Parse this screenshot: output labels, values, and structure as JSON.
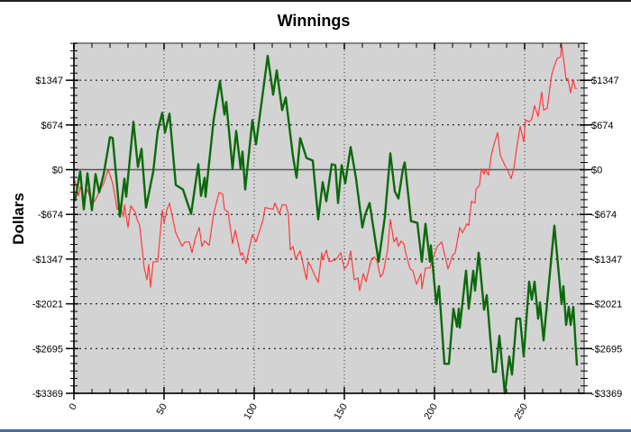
{
  "chart_data": {
    "type": "line",
    "title": "Winnings",
    "xlabel": "",
    "ylabel": "Dollars",
    "xlim": [
      0,
      283
    ],
    "ylim": [
      -3369,
      1905
    ],
    "x_ticks": [
      0,
      50,
      100,
      150,
      200,
      250
    ],
    "x_tick_labels": [
      "0",
      "50",
      "100",
      "150",
      "200",
      "250"
    ],
    "y_ticks": [
      1347,
      674,
      0,
      -674,
      -1347,
      -2021,
      -2695,
      -3369
    ],
    "y_tick_labels": [
      "$1347",
      "$674",
      "$0",
      "-$674",
      "-$1347",
      "-$2021",
      "-$2695",
      "-$3369"
    ],
    "grid": true,
    "legend": "none",
    "colors": {
      "plot_bg": "#d3d3d3",
      "green": "#0a6a0a",
      "red": "#ff3b3b",
      "zero_line": "#555555"
    },
    "series": [
      {
        "name": "green",
        "points": [
          [
            0.5,
            -476
          ],
          [
            3.5,
            -27
          ],
          [
            5.5,
            -598
          ],
          [
            7.5,
            -54
          ],
          [
            10,
            -612
          ],
          [
            12,
            -68
          ],
          [
            14,
            -340
          ],
          [
            16.5,
            -68
          ],
          [
            20,
            490
          ],
          [
            21.5,
            476
          ],
          [
            25.5,
            -707
          ],
          [
            28,
            -136
          ],
          [
            29,
            -408
          ],
          [
            33,
            721
          ],
          [
            35.5,
            41
          ],
          [
            37.5,
            313
          ],
          [
            40,
            -571
          ],
          [
            44,
            -27
          ],
          [
            46.5,
            585
          ],
          [
            49,
            857
          ],
          [
            50.5,
            558
          ],
          [
            53,
            843
          ],
          [
            56.5,
            -231
          ],
          [
            60.5,
            -299
          ],
          [
            65,
            -666
          ],
          [
            69,
            82
          ],
          [
            70.5,
            -394
          ],
          [
            72.5,
            -122
          ],
          [
            73,
            -408
          ],
          [
            77.5,
            748
          ],
          [
            81,
            1333
          ],
          [
            83.5,
            830
          ],
          [
            84.5,
            1020
          ],
          [
            88,
            14
          ],
          [
            90,
            585
          ],
          [
            92.5,
            14
          ],
          [
            93.5,
            272
          ],
          [
            95,
            -299
          ],
          [
            99,
            748
          ],
          [
            101,
            381
          ],
          [
            107.5,
            1714
          ],
          [
            110.5,
            1129
          ],
          [
            112.5,
            1496
          ],
          [
            115.5,
            898
          ],
          [
            117.5,
            1088
          ],
          [
            121.5,
            204
          ],
          [
            123.5,
            -122
          ],
          [
            125.5,
            476
          ],
          [
            129,
            177
          ],
          [
            132.5,
            136
          ],
          [
            135.5,
            -748
          ],
          [
            138,
            -190
          ],
          [
            140,
            -476
          ],
          [
            143,
            82
          ],
          [
            145,
            68
          ],
          [
            146.5,
            -503
          ],
          [
            148.5,
            68
          ],
          [
            150.5,
            -204
          ],
          [
            153.5,
            340
          ],
          [
            156.5,
            -136
          ],
          [
            160,
            -870
          ],
          [
            161.5,
            -680
          ],
          [
            164,
            -503
          ],
          [
            169,
            -1387
          ],
          [
            172.5,
            -707
          ],
          [
            175.5,
            245
          ],
          [
            178,
            -326
          ],
          [
            180,
            -435
          ],
          [
            182.5,
            14
          ],
          [
            183.5,
            109
          ],
          [
            187,
            -775
          ],
          [
            190.5,
            -802
          ],
          [
            193,
            -1387
          ],
          [
            195,
            -816
          ],
          [
            197.5,
            -1387
          ],
          [
            198,
            -1142
          ],
          [
            201,
            -2026
          ],
          [
            202.5,
            -1754
          ],
          [
            205.5,
            -2924
          ],
          [
            208,
            -2924
          ],
          [
            210.5,
            -2094
          ],
          [
            212.5,
            -2366
          ],
          [
            213.5,
            -2094
          ],
          [
            214,
            -2380
          ],
          [
            217.5,
            -1523
          ],
          [
            219,
            -2094
          ],
          [
            221.5,
            -1523
          ],
          [
            222.5,
            -1822
          ],
          [
            224.5,
            -1251
          ],
          [
            227.5,
            -2108
          ],
          [
            229,
            -1890
          ],
          [
            232.5,
            -3046
          ],
          [
            234,
            -3046
          ],
          [
            236,
            -2502
          ],
          [
            239,
            -3369
          ],
          [
            241.5,
            -2815
          ],
          [
            243,
            -3087
          ],
          [
            245.5,
            -2244
          ],
          [
            247.5,
            -2244
          ],
          [
            249.5,
            -2815
          ],
          [
            252.5,
            -1686
          ],
          [
            254,
            -1958
          ],
          [
            255.5,
            -1686
          ],
          [
            257.5,
            -2244
          ],
          [
            258.5,
            -1999
          ],
          [
            260.5,
            -2570
          ],
          [
            266.5,
            -843
          ],
          [
            270.5,
            -2026
          ],
          [
            271.5,
            -1754
          ],
          [
            273,
            -2339
          ],
          [
            274.5,
            -2067
          ],
          [
            275.5,
            -2339
          ],
          [
            277,
            -2067
          ],
          [
            279,
            -2951
          ]
        ]
      },
      {
        "name": "red",
        "points": [
          [
            0.5,
            -163
          ],
          [
            2.5,
            -394
          ],
          [
            3.5,
            -258
          ],
          [
            5.5,
            -435
          ],
          [
            7.5,
            -299
          ],
          [
            10,
            -503
          ],
          [
            11.5,
            -476
          ],
          [
            14,
            -340
          ],
          [
            16.5,
            -204
          ],
          [
            19,
            0
          ],
          [
            21.5,
            -204
          ],
          [
            24,
            -598
          ],
          [
            25.5,
            -530
          ],
          [
            27.5,
            -707
          ],
          [
            28,
            -530
          ],
          [
            30,
            -870
          ],
          [
            31.5,
            -544
          ],
          [
            34,
            -639
          ],
          [
            35,
            -748
          ],
          [
            36.5,
            -843
          ],
          [
            39,
            -1482
          ],
          [
            40.5,
            -1659
          ],
          [
            41.5,
            -1428
          ],
          [
            42.5,
            -1768
          ],
          [
            44,
            -1387
          ],
          [
            46.5,
            -1387
          ],
          [
            49,
            -612
          ],
          [
            50,
            -802
          ],
          [
            51.5,
            -612
          ],
          [
            53,
            -503
          ],
          [
            56.5,
            -952
          ],
          [
            60,
            -1156
          ],
          [
            61.5,
            -1088
          ],
          [
            64,
            -1088
          ],
          [
            65.5,
            -1251
          ],
          [
            67.5,
            -1020
          ],
          [
            69.5,
            -870
          ],
          [
            71,
            -1156
          ],
          [
            72.5,
            -1074
          ],
          [
            75,
            -1142
          ],
          [
            77.5,
            -666
          ],
          [
            80.5,
            -340
          ],
          [
            82.5,
            -367
          ],
          [
            83.5,
            -598
          ],
          [
            85.5,
            -639
          ],
          [
            88,
            -1115
          ],
          [
            89.5,
            -911
          ],
          [
            92.5,
            -1292
          ],
          [
            93.5,
            -1251
          ],
          [
            95.5,
            -1414
          ],
          [
            97,
            -1210
          ],
          [
            99,
            -979
          ],
          [
            101,
            -1088
          ],
          [
            105,
            -748
          ],
          [
            106,
            -571
          ],
          [
            110.5,
            -598
          ],
          [
            111.5,
            -503
          ],
          [
            114,
            -666
          ],
          [
            115.5,
            -530
          ],
          [
            117.5,
            -530
          ],
          [
            119,
            -666
          ],
          [
            120,
            -1210
          ],
          [
            121.5,
            -1156
          ],
          [
            123,
            -1346
          ],
          [
            125.5,
            -1224
          ],
          [
            129,
            -1659
          ],
          [
            130,
            -1387
          ],
          [
            132.5,
            -1523
          ],
          [
            134,
            -1618
          ],
          [
            135.5,
            -1700
          ],
          [
            137.5,
            -1251
          ],
          [
            138,
            -1360
          ],
          [
            140,
            -1210
          ],
          [
            141.5,
            -1387
          ],
          [
            145,
            -1360
          ],
          [
            145.5,
            -1346
          ],
          [
            148,
            -1251
          ],
          [
            150,
            -1496
          ],
          [
            152,
            -1428
          ],
          [
            153.5,
            -1224
          ],
          [
            155.5,
            -1659
          ],
          [
            157.5,
            -1632
          ],
          [
            158.5,
            -1822
          ],
          [
            160.5,
            -1564
          ],
          [
            162,
            -1686
          ],
          [
            165,
            -1346
          ],
          [
            166.5,
            -1319
          ],
          [
            168,
            -1360
          ],
          [
            170,
            -1618
          ],
          [
            171.5,
            -1564
          ],
          [
            174,
            -1210
          ],
          [
            175.5,
            -748
          ],
          [
            177.5,
            -1088
          ],
          [
            179,
            -1020
          ],
          [
            180,
            -1156
          ],
          [
            181.5,
            -1074
          ],
          [
            183,
            -1115
          ],
          [
            184,
            -1251
          ],
          [
            186.5,
            -1496
          ],
          [
            188,
            -1523
          ],
          [
            190,
            -1727
          ],
          [
            192.5,
            -1564
          ],
          [
            193,
            -1795
          ],
          [
            195,
            -1482
          ],
          [
            197.5,
            -1482
          ],
          [
            199,
            -1346
          ],
          [
            201.5,
            -1156
          ],
          [
            204,
            -1088
          ],
          [
            207.5,
            -1496
          ],
          [
            210,
            -1292
          ],
          [
            211.5,
            -1251
          ],
          [
            214,
            -870
          ],
          [
            215.5,
            -952
          ],
          [
            218,
            -816
          ],
          [
            219,
            -843
          ],
          [
            220.5,
            -476
          ],
          [
            222.5,
            -503
          ],
          [
            223,
            -299
          ],
          [
            225,
            -231
          ],
          [
            226,
            14
          ],
          [
            227.5,
            -68
          ],
          [
            228,
            14
          ],
          [
            230,
            -82
          ],
          [
            231.5,
            218
          ],
          [
            233,
            381
          ],
          [
            235,
            558
          ],
          [
            236.5,
            218
          ],
          [
            239,
            68
          ],
          [
            240.5,
            0
          ],
          [
            242.5,
            -136
          ],
          [
            244,
            14
          ],
          [
            245.5,
            313
          ],
          [
            247.5,
            653
          ],
          [
            249.5,
            422
          ],
          [
            250.5,
            748
          ],
          [
            252.5,
            721
          ],
          [
            254,
            762
          ],
          [
            255.5,
            966
          ],
          [
            257.5,
            802
          ],
          [
            259.5,
            1170
          ],
          [
            260.5,
            898
          ],
          [
            262.5,
            925
          ],
          [
            265,
            1428
          ],
          [
            266.5,
            1564
          ],
          [
            268,
            1673
          ],
          [
            270,
            1700
          ],
          [
            270.5,
            1905
          ],
          [
            273,
            1360
          ],
          [
            274,
            1374
          ],
          [
            275.5,
            1156
          ],
          [
            277,
            1360
          ],
          [
            278,
            1224
          ],
          [
            279,
            1224
          ]
        ]
      }
    ]
  }
}
